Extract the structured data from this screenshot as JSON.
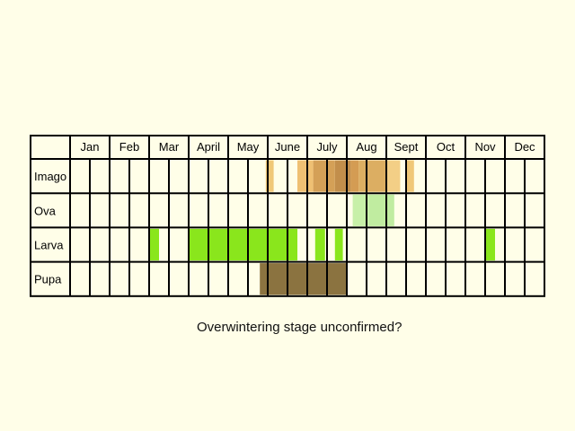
{
  "chart_data": {
    "type": "table",
    "months": [
      "Jan",
      "Feb",
      "Mar",
      "April",
      "May",
      "June",
      "July",
      "Aug",
      "Sept",
      "Oct",
      "Nov",
      "Dec"
    ],
    "periods_per_month": 2,
    "stages": [
      {
        "name": "Imago",
        "color": "#f0c878",
        "bands": [
          {
            "from": 9.9,
            "to": 10.3,
            "color": "#f0c878"
          },
          {
            "from": 11.5,
            "to": 12.3,
            "color": "#efc073"
          },
          {
            "from": 12.3,
            "to": 13.4,
            "color": "#d4a057"
          },
          {
            "from": 13.4,
            "to": 14.2,
            "color": "#c28e4b"
          },
          {
            "from": 14.2,
            "to": 14.6,
            "color": "#d49c53"
          },
          {
            "from": 14.6,
            "to": 16.0,
            "color": "#dcae62"
          },
          {
            "from": 16.0,
            "to": 16.7,
            "color": "#f3cf86"
          },
          {
            "from": 17.0,
            "to": 17.4,
            "color": "#f0c878"
          }
        ]
      },
      {
        "name": "Ova",
        "color": "#c8f0a8",
        "bands": [
          {
            "from": 14.3,
            "to": 15.1,
            "color": "#c8f0a8"
          },
          {
            "from": 15.1,
            "to": 16.4,
            "color": "#c0eca0"
          }
        ]
      },
      {
        "name": "Larva",
        "color": "#8ae61c",
        "bands": [
          {
            "from": 4.0,
            "to": 4.5,
            "color": "#8ae61c"
          },
          {
            "from": 6.0,
            "to": 11.5,
            "color": "#8ae61c"
          },
          {
            "from": 12.4,
            "to": 12.9,
            "color": "#8ae61c"
          },
          {
            "from": 13.4,
            "to": 13.8,
            "color": "#8ae61c"
          },
          {
            "from": 21.0,
            "to": 21.5,
            "color": "#8ae61c"
          }
        ]
      },
      {
        "name": "Pupa",
        "color": "#8b7340",
        "bands": [
          {
            "from": 9.6,
            "to": 14.0,
            "color": "#8b7340"
          }
        ]
      }
    ],
    "note": "Overwintering stage unconfirmed?"
  }
}
